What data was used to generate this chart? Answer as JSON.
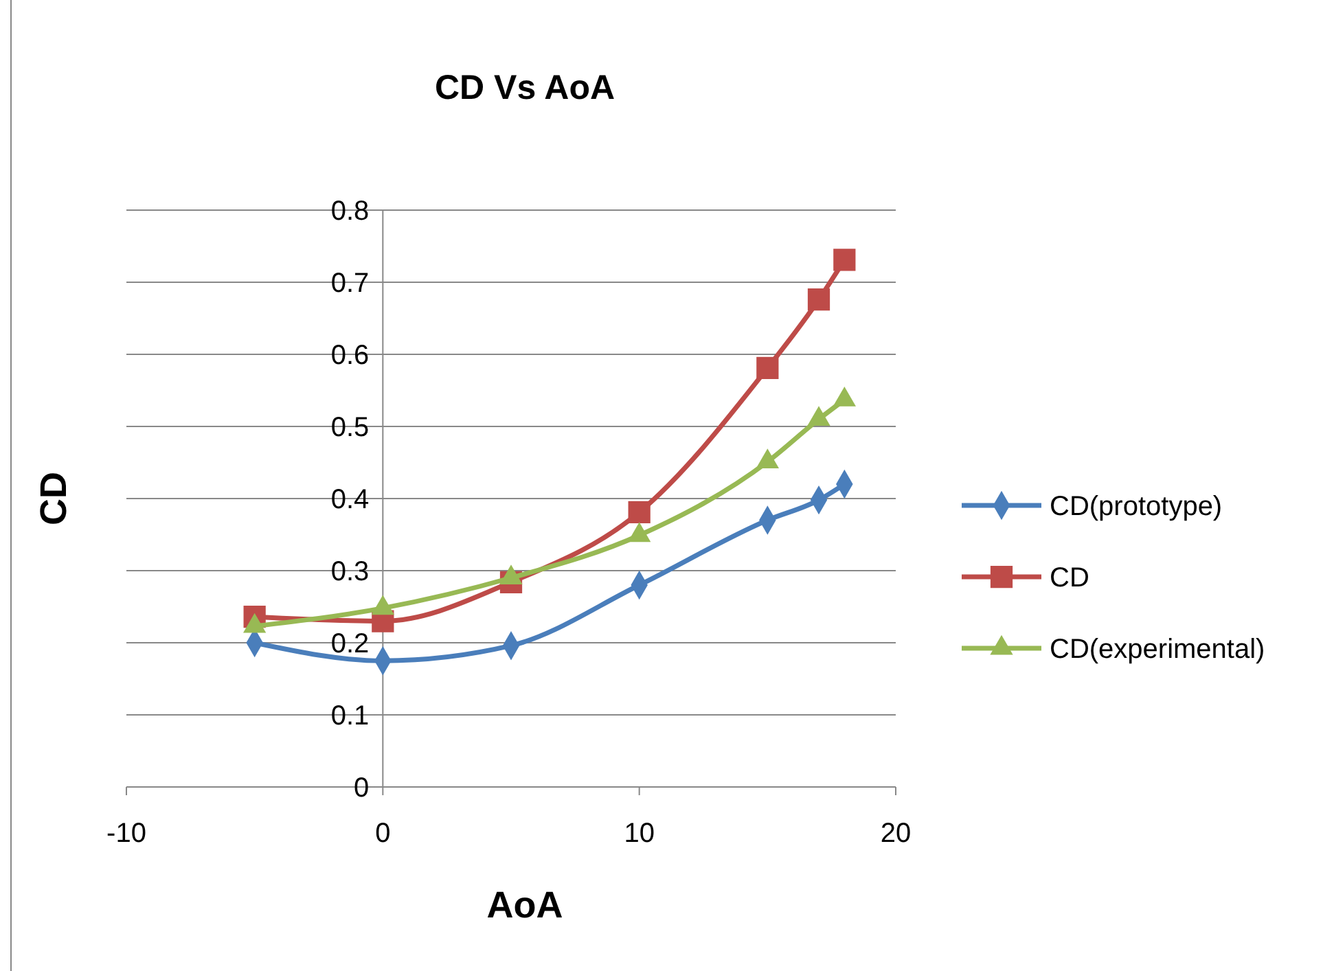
{
  "chart_data": {
    "type": "line",
    "title": "CD Vs AoA",
    "xlabel": "AoA",
    "ylabel": "CD",
    "xlim": [
      -10,
      20
    ],
    "xticks": [
      -10,
      0,
      10,
      20
    ],
    "ylim": [
      0,
      0.8
    ],
    "yticks": [
      0,
      0.1,
      0.2,
      0.3,
      0.4,
      0.5,
      0.6,
      0.7,
      0.8
    ],
    "grid": "y",
    "legend": "right",
    "x": [
      -5,
      0,
      5,
      10,
      15,
      17,
      18
    ],
    "series": [
      {
        "name": "CD(prototype)",
        "color": "#4a7ebb",
        "marker": "diamond",
        "values": [
          0.2,
          0.175,
          0.196,
          0.28,
          0.37,
          0.398,
          0.42
        ]
      },
      {
        "name": "CD",
        "color": "#be4b48",
        "marker": "square",
        "values": [
          0.236,
          0.23,
          0.284,
          0.381,
          0.581,
          0.676,
          0.731
        ]
      },
      {
        "name": "CD(experimental)",
        "color": "#98b954",
        "marker": "triangle",
        "values": [
          0.223,
          0.248,
          0.29,
          0.349,
          0.451,
          0.51,
          0.537
        ]
      }
    ]
  }
}
